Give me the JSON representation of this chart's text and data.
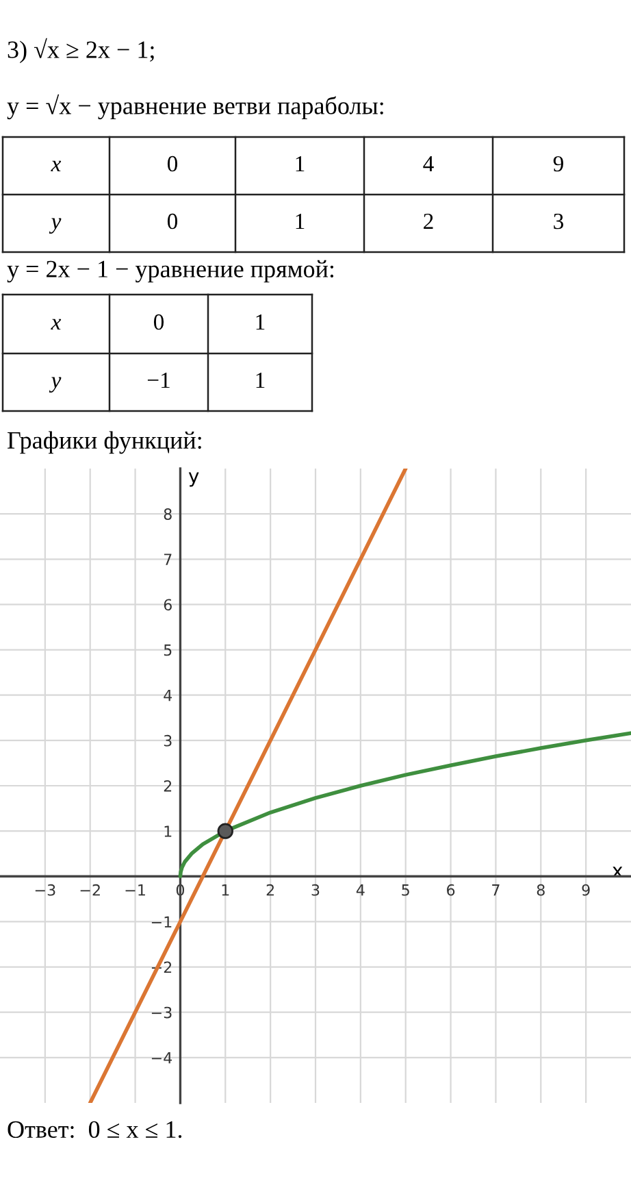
{
  "chart_data": {
    "type": "line",
    "title": "3) √x ≥ 2x − 1;",
    "xlabel": "x",
    "ylabel": "y",
    "xlim": [
      -4,
      10
    ],
    "ylim": [
      -5,
      9
    ],
    "xticks": [
      -3,
      -2,
      -1,
      0,
      1,
      2,
      3,
      4,
      5,
      6,
      7,
      8,
      9
    ],
    "yticks": [
      -4,
      -3,
      -2,
      -1,
      1,
      2,
      3,
      4,
      5,
      6,
      7,
      8
    ],
    "grid": true,
    "series": [
      {
        "color": "#db7633",
        "x": [
          -2,
          5
        ],
        "values": [
          -5,
          9
        ]
      },
      {
        "color": "#3f8f3f",
        "x": [
          0,
          0.01,
          0.04,
          0.1,
          0.25,
          0.5,
          1,
          2,
          3,
          4,
          5,
          6,
          7,
          8,
          9,
          10
        ],
        "values": [
          0,
          0.1,
          0.2,
          0.32,
          0.5,
          0.71,
          1,
          1.41,
          1.73,
          2,
          2.24,
          2.45,
          2.65,
          2.83,
          3,
          3.16
        ]
      },
      {
        "type": "scatter",
        "color": "#5a5a5a",
        "x": [
          1
        ],
        "values": [
          1
        ]
      }
    ],
    "annotations": [
      "y = √x − уравнение ветви параболы:",
      "x",
      "0",
      "1",
      "4",
      "9",
      "y",
      "0",
      "1",
      "2",
      "3",
      "y = 2x − 1 − уравнение прямой:",
      "x",
      "0",
      "1",
      "y",
      "−1",
      "1",
      "Графики функций:",
      "Ответ:  0 ≤ x ≤ 1."
    ]
  }
}
